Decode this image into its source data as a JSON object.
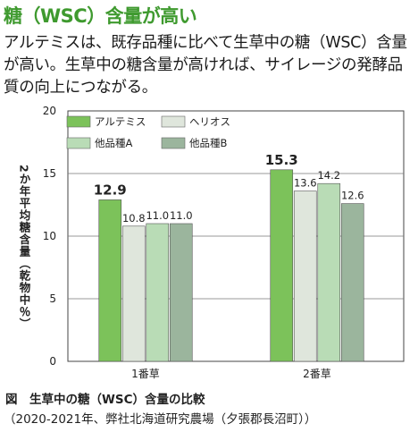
{
  "heading": "糖（WSC）含量が高い",
  "intro": "アルテミスは、既存品種に比べて生草中の糖（WSC）含量が高い。生草中の糖含量が高ければ、サイレージの発酵品質の向上につながる。",
  "caption": "図　生草中の糖（WSC）含量の比較",
  "note": "（2020-2021年、弊社北海道研究農場（夕張郡長沼町））",
  "chart_data": {
    "type": "bar",
    "categories": [
      "1番草",
      "2番草"
    ],
    "series": [
      {
        "name": "アルテミス",
        "values": [
          12.9,
          15.3
        ],
        "color": "#7cc25a",
        "highlight": true
      },
      {
        "name": "ヘリオス",
        "values": [
          10.8,
          13.6
        ],
        "color": "#dfe6dc"
      },
      {
        "name": "他品種A",
        "values": [
          11.0,
          14.2
        ],
        "color": "#b9dcb6"
      },
      {
        "name": "他品種B",
        "values": [
          11.0,
          12.6
        ],
        "color": "#9bb59d"
      }
    ],
    "ylabel": "2か年平均糖含量（乾物中％）",
    "ylim": [
      0,
      20
    ],
    "yticks": [
      0,
      5,
      10,
      15,
      20
    ],
    "grid": true,
    "legend": "top-left"
  }
}
